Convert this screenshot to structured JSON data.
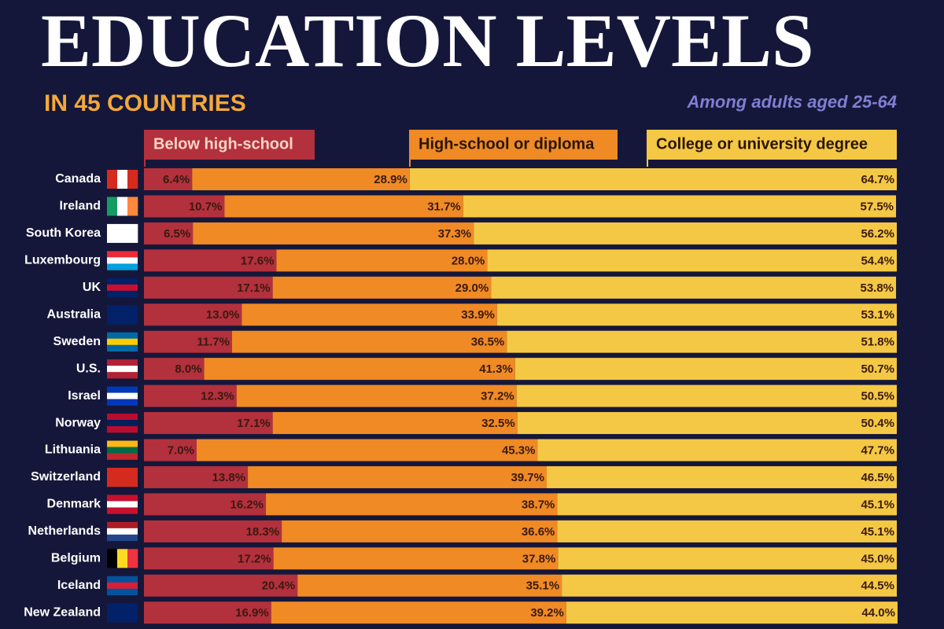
{
  "chart_data": {
    "type": "bar",
    "orientation": "horizontal",
    "stacked": true,
    "title": "EDUCATION LEVELS",
    "subtitle": "IN 45 COUNTRIES",
    "annotation": "Among adults aged 25-64",
    "xlim": [
      0,
      100
    ],
    "categories": [
      "Canada",
      "Ireland",
      "South Korea",
      "Luxembourg",
      "UK",
      "Australia",
      "Sweden",
      "U.S.",
      "Israel",
      "Norway",
      "Lithuania",
      "Switzerland",
      "Denmark",
      "Netherlands",
      "Belgium",
      "Iceland",
      "New Zealand"
    ],
    "series": [
      {
        "name": "Below high-school",
        "color": "#b3303d",
        "values": [
          6.4,
          10.7,
          6.5,
          17.6,
          17.1,
          13.0,
          11.7,
          8.0,
          12.3,
          17.1,
          7.0,
          13.8,
          16.2,
          18.3,
          17.2,
          20.4,
          16.9
        ],
        "value_labels": [
          "6.4%",
          "10.7%",
          "6.5%",
          "17.6%",
          "17.1%",
          "13.0%",
          "11.7%",
          "8.0%",
          "12.3%",
          "17.1%",
          "7.0%",
          "13.8%",
          "16.2%",
          "18.3%",
          "17.2%",
          "20.4%",
          "16.9%"
        ]
      },
      {
        "name": "High-school or diploma",
        "color": "#ef8a25",
        "values": [
          28.9,
          31.7,
          37.3,
          28.0,
          29.0,
          33.9,
          36.5,
          41.3,
          37.2,
          32.5,
          45.3,
          39.7,
          38.7,
          36.6,
          37.8,
          35.1,
          39.2
        ],
        "value_labels": [
          "28.9%",
          "31.7%",
          "37.3%",
          "28.0%",
          "29.0%",
          "33.9%",
          "36.5%",
          "41.3%",
          "37.2%",
          "32.5%",
          "45.3%",
          "39.7%",
          "38.7%",
          "36.6%",
          "37.8%",
          "35.1%",
          "39.2%"
        ]
      },
      {
        "name": "College or university degree",
        "color": "#f4c844",
        "values": [
          64.7,
          57.5,
          56.2,
          54.4,
          53.8,
          53.1,
          51.8,
          50.7,
          50.5,
          50.4,
          47.7,
          46.5,
          45.1,
          45.1,
          45.0,
          44.5,
          44.0
        ],
        "value_labels": [
          "64.7%",
          "57.5%",
          "56.2%",
          "54.4%",
          "53.8%",
          "53.1%",
          "51.8%",
          "50.7%",
          "50.5%",
          "50.4%",
          "47.7%",
          "46.5%",
          "45.1%",
          "45.1%",
          "45.0%",
          "44.5%",
          "44.0%"
        ]
      }
    ]
  }
}
